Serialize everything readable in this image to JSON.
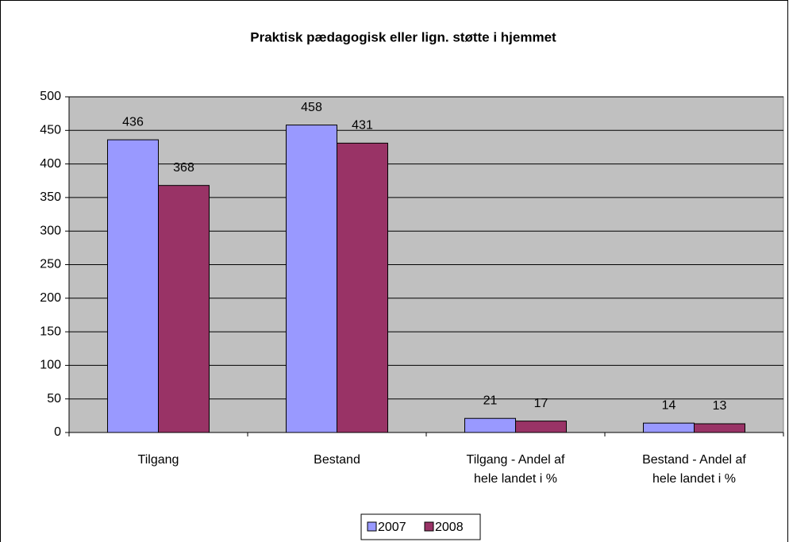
{
  "chart_data": {
    "type": "bar",
    "title": "Praktisk pædagogisk eller lign. støtte i hjemmet",
    "categories": [
      "Tilgang",
      "Bestand",
      "Tilgang - Andel af hele landet i %",
      "Bestand - Andel af hele landet i %"
    ],
    "series": [
      {
        "name": "2007",
        "color": "#9999ff",
        "values": [
          436,
          458,
          21,
          14
        ]
      },
      {
        "name": "2008",
        "color": "#993366",
        "values": [
          368,
          431,
          17,
          13
        ]
      }
    ],
    "ylim": [
      0,
      500
    ],
    "yticks": [
      0,
      50,
      100,
      150,
      200,
      250,
      300,
      350,
      400,
      450,
      500
    ],
    "grid": true,
    "plot_background": "#c0c0c0",
    "legend": "bottom"
  }
}
